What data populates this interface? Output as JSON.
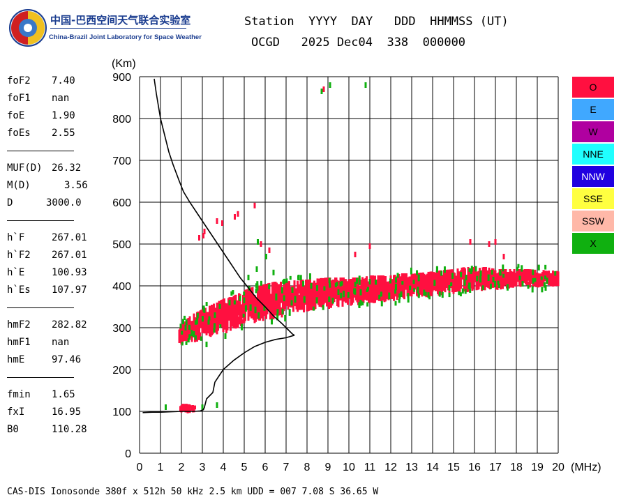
{
  "logo": {
    "text_cn": "中国-巴西空间天气联合实验室",
    "text_en": "China-Brazil Joint Laboratory for Space Weather"
  },
  "header": {
    "line1": "Station  YYYY  DAY   DDD  HHMMSS (UT)",
    "line2": "OCGD   2025 Dec04  338  000000"
  },
  "params": [
    {
      "label": "foF2",
      "value": "7.40"
    },
    {
      "label": "foF1",
      "value": "nan"
    },
    {
      "label": "foE",
      "value": "1.90"
    },
    {
      "label": "foEs",
      "value": "2.55"
    },
    {
      "sep": true
    },
    {
      "label": "MUF(D)",
      "value": "26.32"
    },
    {
      "label": "M(D)",
      "value": "3.56"
    },
    {
      "label": "D",
      "value": "3000.0"
    },
    {
      "sep": true
    },
    {
      "label": "h`F",
      "value": "267.01"
    },
    {
      "label": "h`F2",
      "value": "267.01"
    },
    {
      "label": "h`E",
      "value": "100.93"
    },
    {
      "label": "h`Es",
      "value": "107.97"
    },
    {
      "sep": true
    },
    {
      "label": "hmF2",
      "value": "282.82"
    },
    {
      "label": "hmF1",
      "value": "nan"
    },
    {
      "label": "hmE",
      "value": "97.46"
    },
    {
      "sep": true
    },
    {
      "label": "fmin",
      "value": "1.65"
    },
    {
      "label": "fxI",
      "value": "16.95"
    },
    {
      "label": "B0",
      "value": "110.28"
    }
  ],
  "legend": [
    {
      "label": "O",
      "color": "#ff1040"
    },
    {
      "label": "E",
      "color": "#40a8ff"
    },
    {
      "label": "W",
      "color": "#b000a0"
    },
    {
      "label": "NNE",
      "color": "#20ffff"
    },
    {
      "label": "NNW",
      "color": "#2000e0"
    },
    {
      "label": "SSE",
      "color": "#ffff40"
    },
    {
      "label": "SSW",
      "color": "#ffb8a8"
    },
    {
      "label": "X",
      "color": "#10b010"
    }
  ],
  "footer": "CAS-DIS Ionosonde 380f x 512h 50 kHz 2.5 km UDD = 007 7.08 S 36.65 W",
  "chart_data": {
    "type": "scatter",
    "xlabel": "(MHz)",
    "ylabel": "(Km)",
    "xlim": [
      0,
      20
    ],
    "ylim": [
      0,
      900
    ],
    "xticks": [
      0,
      1,
      2,
      3,
      4,
      5,
      6,
      7,
      8,
      9,
      10,
      11,
      12,
      13,
      14,
      15,
      16,
      17,
      18,
      19,
      20
    ],
    "yticks": [
      0,
      100,
      200,
      300,
      400,
      500,
      600,
      700,
      800,
      900
    ],
    "grid": true,
    "legend_position": "right",
    "series": [
      {
        "name": "O",
        "color": "#ff1040",
        "bands": [
          {
            "x": [
              1.85,
              2.1,
              2.4,
              2.8,
              3.2,
              3.6,
              4.0,
              4.4,
              4.8,
              5.2,
              5.6,
              6.0,
              6.4,
              6.8,
              7.2,
              7.6,
              8.0,
              8.5,
              9.0,
              9.5,
              10.0,
              10.5,
              11.0,
              11.5,
              12.0,
              12.5,
              13.0,
              13.5,
              14.0,
              14.5,
              15.0,
              15.5,
              16.0,
              16.5,
              17.0,
              17.5,
              18.0,
              18.5,
              19.0,
              19.5,
              20.0
            ],
            "ylow": [
              258,
              258,
              262,
              268,
              275,
              280,
              285,
              292,
              300,
              305,
              310,
              316,
              320,
              325,
              330,
              335,
              338,
              342,
              345,
              348,
              350,
              354,
              358,
              360,
              362,
              365,
              368,
              372,
              375,
              378,
              380,
              384,
              386,
              388,
              390,
              392,
              394,
              396,
              396,
              398,
              398
            ],
            "yhigh": [
              300,
              315,
              330,
              340,
              350,
              360,
              370,
              375,
              385,
              395,
              400,
              405,
              410,
              410,
              412,
              415,
              415,
              418,
              420,
              420,
              420,
              420,
              425,
              425,
              425,
              430,
              430,
              432,
              435,
              438,
              440,
              445,
              445,
              445,
              440,
              440,
              440,
              440,
              438,
              438,
              435
            ]
          },
          {
            "x": [
              1.9,
              2.0,
              2.2,
              2.4,
              2.6
            ],
            "ylow": [
              95,
              95,
              95,
              96,
              98
            ],
            "yhigh": [
              115,
              118,
              118,
              116,
              114
            ]
          }
        ],
        "points": [
          [
            2.0,
            270
          ],
          [
            3.7,
            555
          ],
          [
            3.95,
            550
          ],
          [
            4.55,
            565
          ],
          [
            4.7,
            572
          ],
          [
            5.5,
            592
          ],
          [
            2.85,
            515
          ],
          [
            3.05,
            520
          ],
          [
            3.1,
            530
          ],
          [
            8.8,
            870
          ],
          [
            5.8,
            500
          ],
          [
            6.2,
            485
          ],
          [
            10.3,
            475
          ],
          [
            11.0,
            495
          ],
          [
            15.8,
            505
          ],
          [
            16.7,
            500
          ],
          [
            17.0,
            505
          ],
          [
            17.4,
            470
          ]
        ]
      },
      {
        "name": "X",
        "color": "#10b010",
        "points": [
          [
            8.7,
            865
          ],
          [
            9.1,
            880
          ],
          [
            10.8,
            880
          ],
          [
            5.65,
            505
          ],
          [
            6.05,
            470
          ],
          [
            7.6,
            420
          ],
          [
            8.2,
            400
          ],
          [
            9.5,
            385
          ],
          [
            11.0,
            410
          ],
          [
            12.5,
            380
          ],
          [
            13.8,
            378
          ],
          [
            14.8,
            395
          ],
          [
            15.6,
            420
          ],
          [
            16.3,
            430
          ],
          [
            16.9,
            415
          ],
          [
            18.3,
            405
          ],
          [
            18.8,
            412
          ],
          [
            19.4,
            395
          ],
          [
            3.2,
            260
          ],
          [
            2.6,
            285
          ],
          [
            2.2,
            300
          ],
          [
            3.6,
            330
          ],
          [
            4.3,
            360
          ],
          [
            4.8,
            370
          ],
          [
            5.2,
            420
          ],
          [
            5.6,
            440
          ],
          [
            6.4,
            432
          ],
          [
            6.9,
            410
          ],
          [
            7.3,
            390
          ],
          [
            1.25,
            110
          ],
          [
            3.0,
            110
          ],
          [
            3.7,
            115
          ],
          [
            4.1,
            280
          ]
        ]
      }
    ],
    "profile": {
      "x": [
        0.7,
        0.8,
        0.9,
        1.0,
        1.2,
        1.4,
        1.6,
        1.9,
        2.1,
        2.4,
        2.8,
        3.2,
        3.6,
        4.0,
        4.4,
        4.8,
        5.2,
        5.6,
        6.0,
        6.4,
        6.8,
        7.1,
        7.3,
        7.4
      ],
      "y": [
        895,
        860,
        830,
        800,
        760,
        720,
        690,
        650,
        625,
        600,
        570,
        540,
        510,
        480,
        450,
        420,
        395,
        370,
        350,
        328,
        310,
        295,
        285,
        282
      ]
    },
    "profile_low": {
      "x": [
        0.15,
        0.6,
        1.0,
        1.5,
        2.0,
        2.3,
        2.6,
        2.9,
        3.05,
        3.1,
        3.2,
        3.4,
        3.5,
        3.6,
        3.8,
        4.0,
        4.5,
        5.0,
        5.5,
        6.0,
        6.5,
        7.0,
        7.4
      ],
      "y": [
        97,
        98,
        98,
        99,
        100,
        100,
        100,
        101,
        104,
        110,
        130,
        140,
        145,
        170,
        185,
        200,
        222,
        240,
        255,
        265,
        272,
        276,
        282
      ]
    }
  }
}
